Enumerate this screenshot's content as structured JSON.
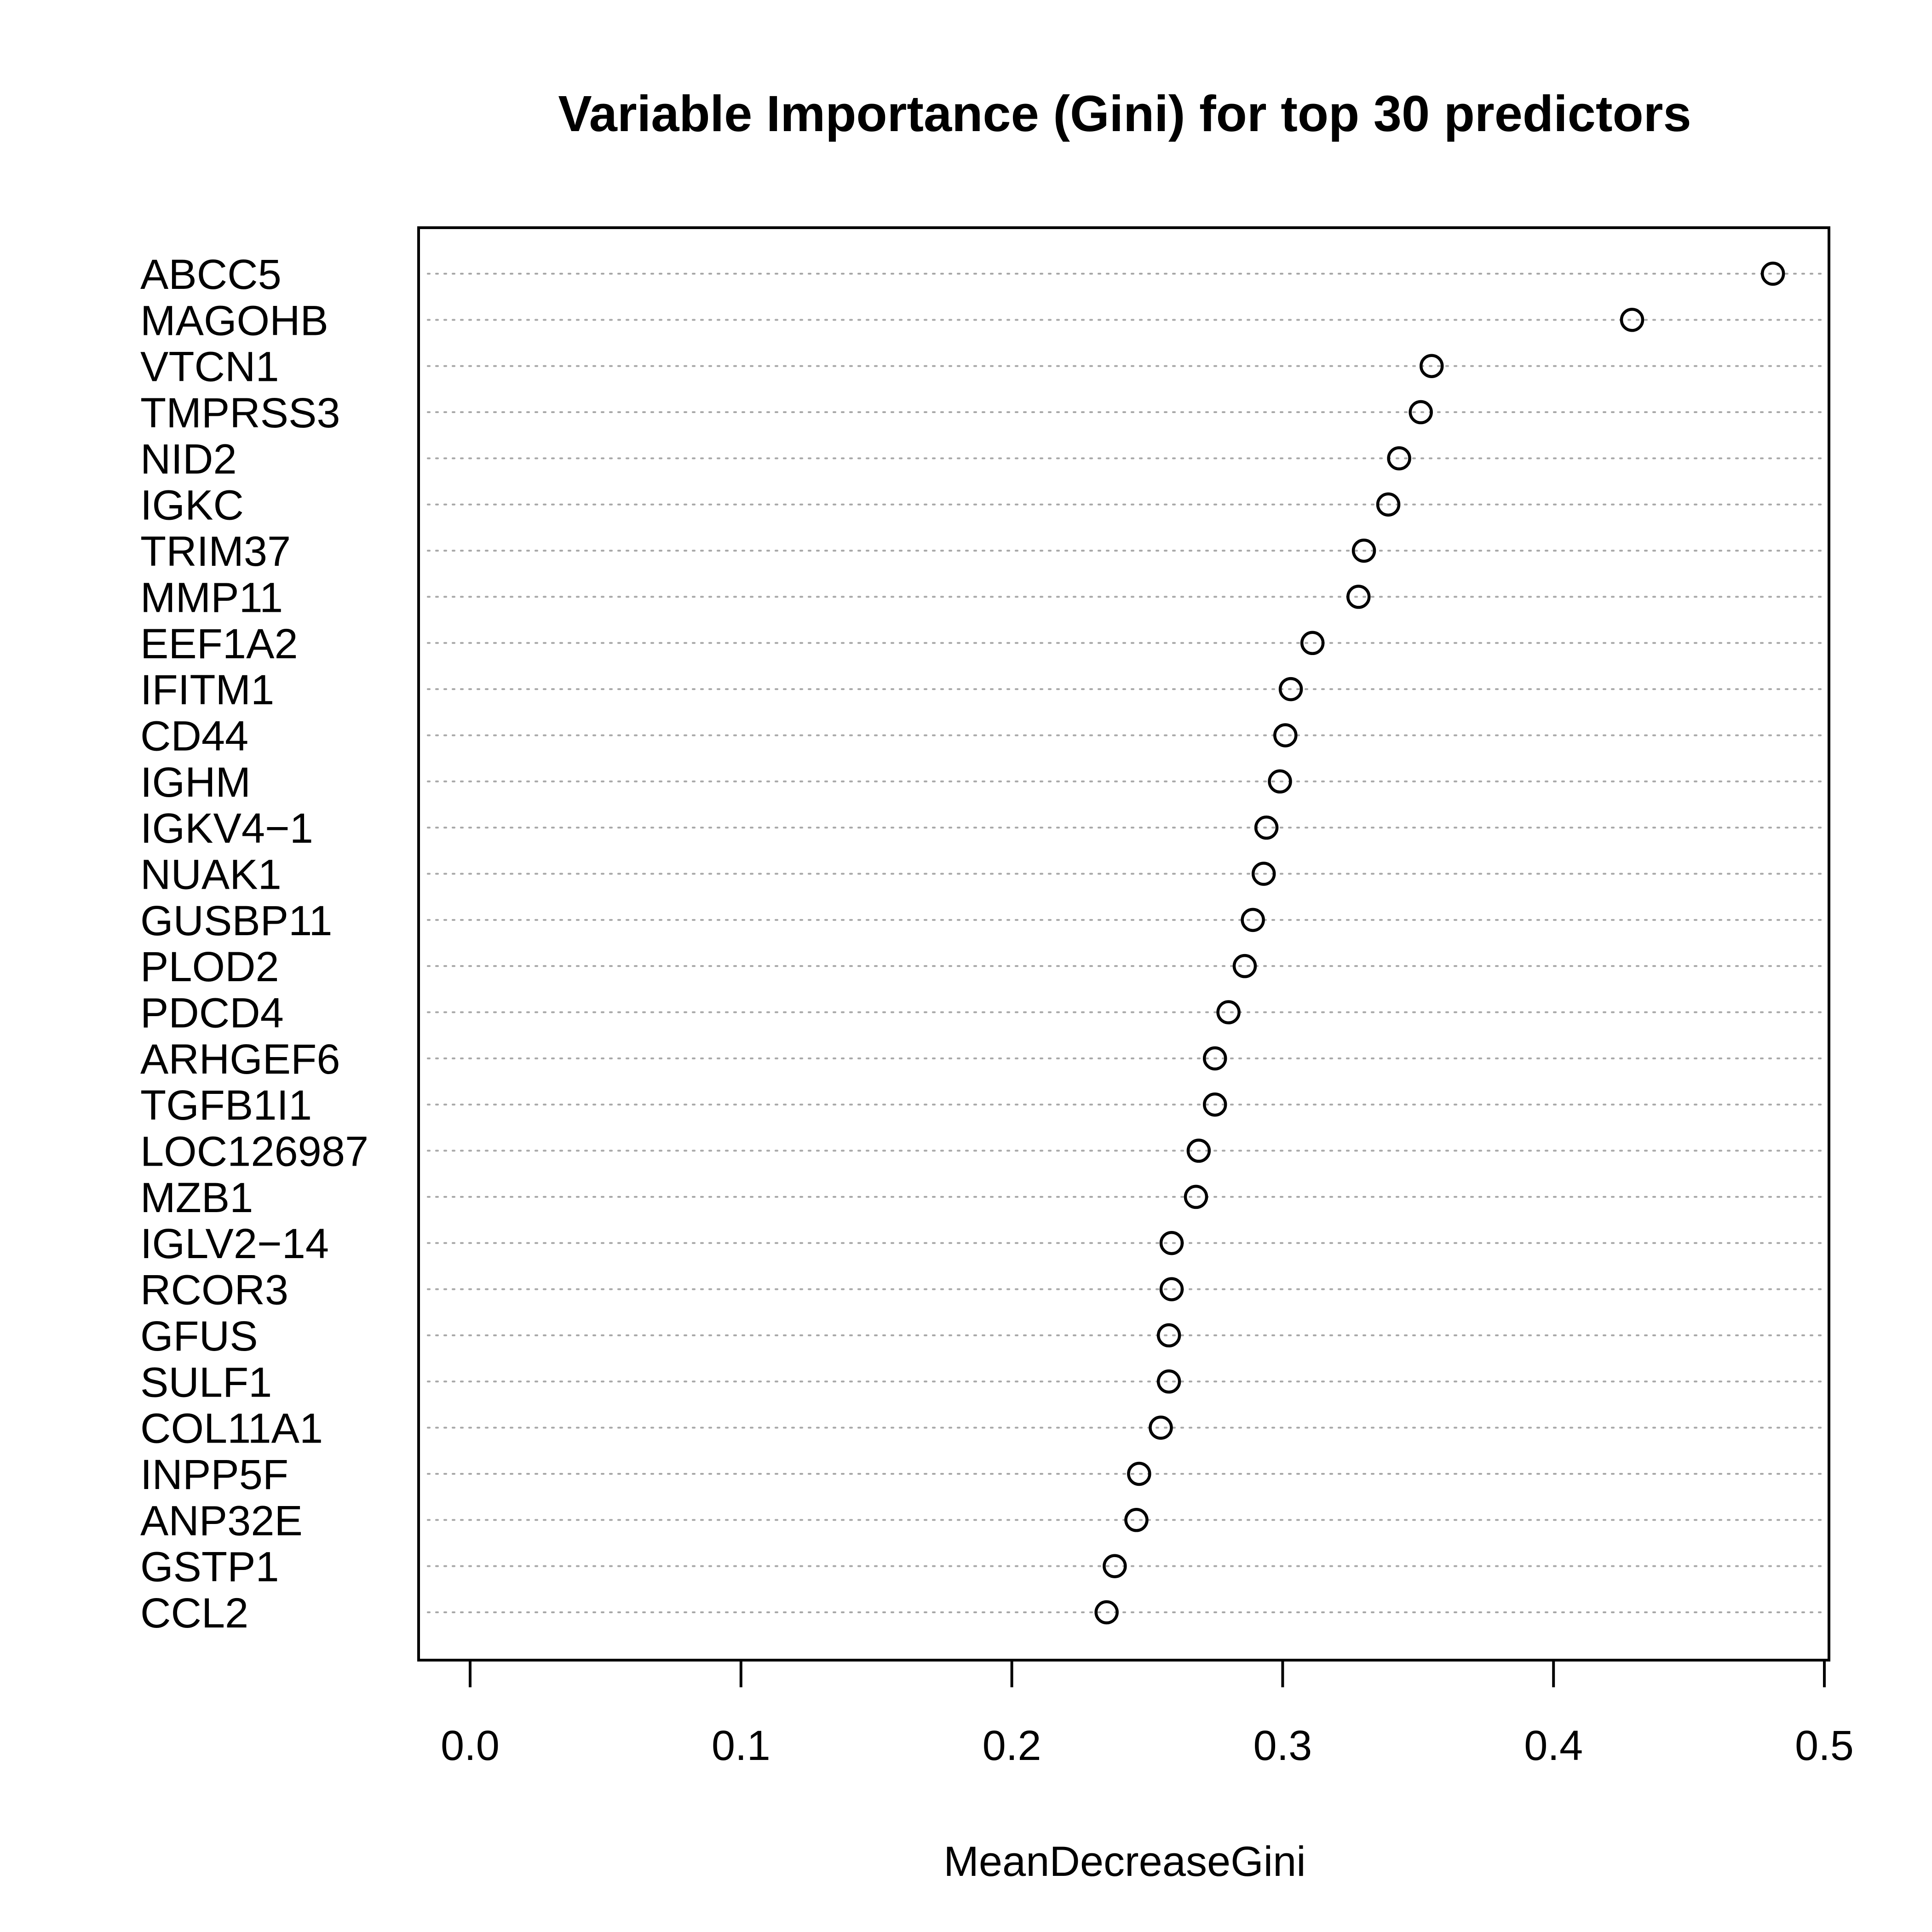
{
  "chart_data": {
    "type": "scatter",
    "title": "Variable Importance (Gini) for top 30 predictors",
    "xlabel": "MeanDecreaseGini",
    "ylabel": "",
    "xlim": [
      -0.019,
      0.5
    ],
    "xticks": [
      "0.0",
      "0.1",
      "0.2",
      "0.3",
      "0.4",
      "0.5"
    ],
    "xtick_values": [
      0.0,
      0.1,
      0.2,
      0.3,
      0.4,
      0.5
    ],
    "grid": true,
    "legend": "none",
    "categories": [
      "ABCC5",
      "MAGOHB",
      "VTCN1",
      "TMPRSS3",
      "NID2",
      "IGKC",
      "TRIM37",
      "MMP11",
      "EEF1A2",
      "IFITM1",
      "CD44",
      "IGHM",
      "IGKV4−1",
      "NUAK1",
      "GUSBP11",
      "PLOD2",
      "PDCD4",
      "ARHGEF6",
      "TGFB1I1",
      "LOC126987",
      "MZB1",
      "IGLV2−14",
      "RCOR3",
      "GFUS",
      "SULF1",
      "COL11A1",
      "INPP5F",
      "ANP32E",
      "GSTP1",
      "CCL2"
    ],
    "values": [
      0.481,
      0.429,
      0.355,
      0.351,
      0.343,
      0.339,
      0.33,
      0.328,
      0.311,
      0.303,
      0.301,
      0.299,
      0.294,
      0.293,
      0.289,
      0.286,
      0.28,
      0.275,
      0.275,
      0.269,
      0.268,
      0.259,
      0.259,
      0.258,
      0.258,
      0.255,
      0.247,
      0.246,
      0.238,
      0.235
    ]
  }
}
